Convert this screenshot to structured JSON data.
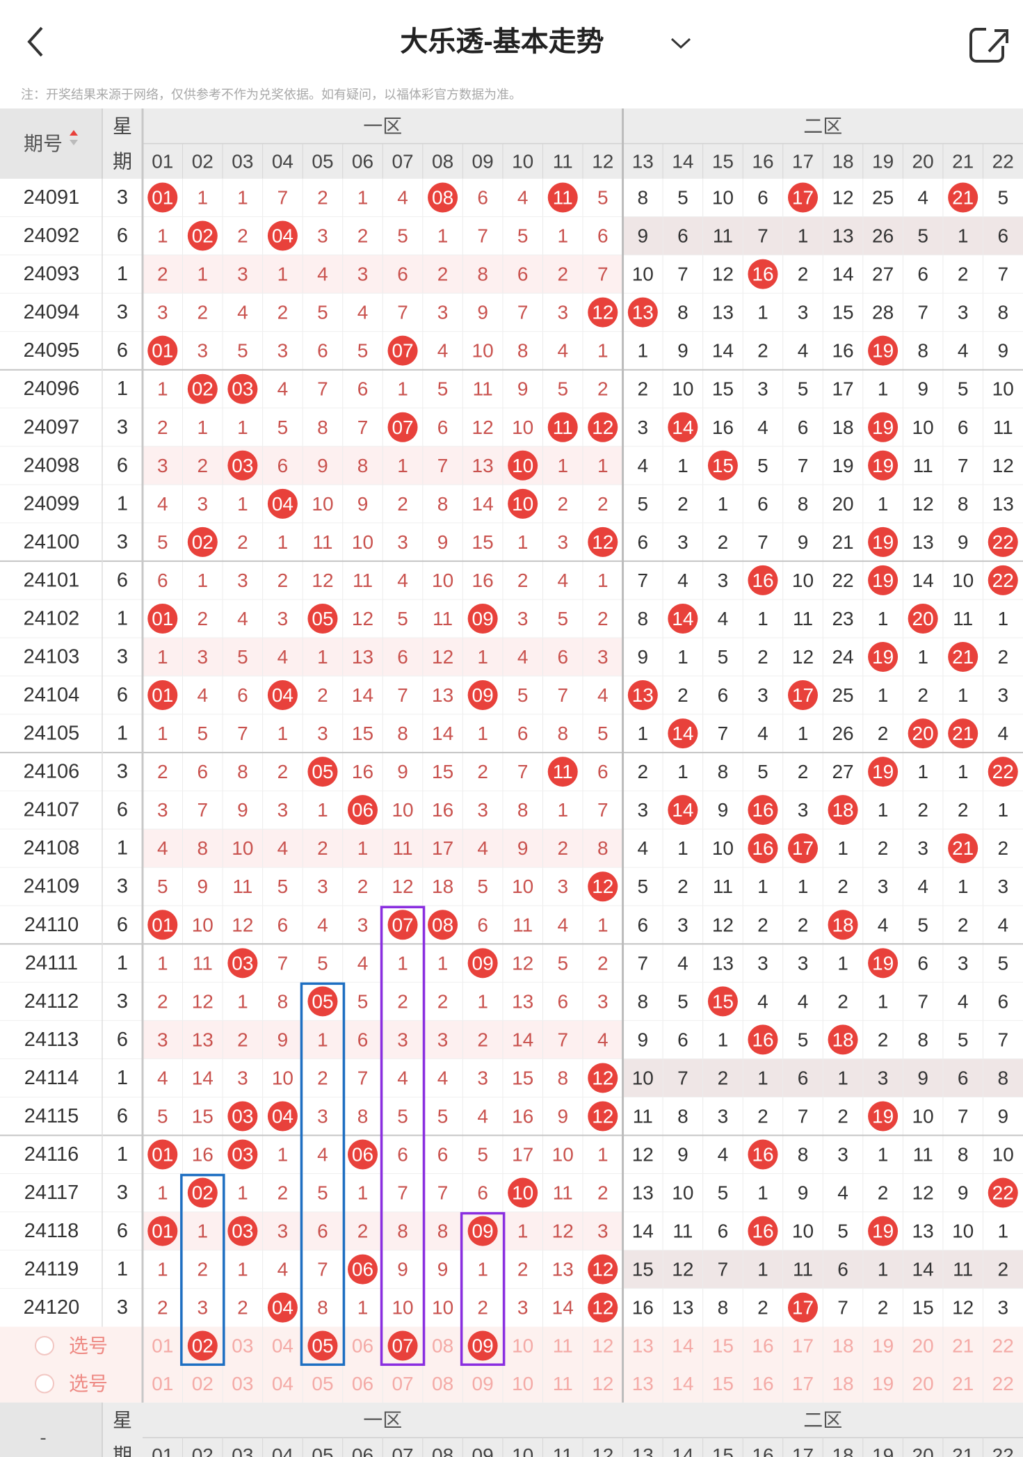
{
  "header": {
    "title": "大乐透-基本走势",
    "note": "注：开奖结果来源于网络，仅供参考不作为兑奖依据。如有疑问，以福体彩官方数据为准。"
  },
  "table": {
    "issue_header": "期号",
    "week_header": [
      "星",
      "期"
    ],
    "zone1": "一区",
    "zone2": "二区",
    "columns": [
      "01",
      "02",
      "03",
      "04",
      "05",
      "06",
      "07",
      "08",
      "09",
      "10",
      "11",
      "12",
      "13",
      "14",
      "15",
      "16",
      "17",
      "18",
      "19",
      "20",
      "21",
      "22"
    ],
    "rows": [
      {
        "issue": "24091",
        "week": "3",
        "cells": [
          "01",
          "1",
          "1",
          "7",
          "2",
          "1",
          "4",
          "08",
          "6",
          "4",
          "11",
          "5",
          "8",
          "5",
          "10",
          "6",
          "17",
          "12",
          "25",
          "4",
          "21",
          "5"
        ],
        "hits": [
          0,
          7,
          10,
          16,
          20
        ]
      },
      {
        "issue": "24092",
        "week": "6",
        "cells": [
          "1",
          "02",
          "2",
          "04",
          "3",
          "2",
          "5",
          "1",
          "7",
          "5",
          "1",
          "6",
          "9",
          "6",
          "11",
          "7",
          "1",
          "13",
          "26",
          "5",
          "1",
          "6"
        ],
        "hits": [
          1,
          3
        ]
      },
      {
        "issue": "24093",
        "week": "1",
        "cells": [
          "2",
          "1",
          "3",
          "1",
          "4",
          "3",
          "6",
          "2",
          "8",
          "6",
          "2",
          "7",
          "10",
          "7",
          "12",
          "16",
          "2",
          "14",
          "27",
          "6",
          "2",
          "7"
        ],
        "hits": [
          15
        ]
      },
      {
        "issue": "24094",
        "week": "3",
        "cells": [
          "3",
          "2",
          "4",
          "2",
          "5",
          "4",
          "7",
          "3",
          "9",
          "7",
          "3",
          "12",
          "13",
          "8",
          "13",
          "1",
          "3",
          "15",
          "28",
          "7",
          "3",
          "8"
        ],
        "hits": [
          11,
          12
        ]
      },
      {
        "issue": "24095",
        "week": "6",
        "cells": [
          "01",
          "3",
          "5",
          "3",
          "6",
          "5",
          "07",
          "4",
          "10",
          "8",
          "4",
          "1",
          "1",
          "9",
          "14",
          "2",
          "4",
          "16",
          "19",
          "8",
          "4",
          "9"
        ],
        "hits": [
          0,
          6,
          18
        ]
      },
      {
        "issue": "24096",
        "week": "1",
        "cells": [
          "1",
          "02",
          "03",
          "4",
          "7",
          "6",
          "1",
          "5",
          "11",
          "9",
          "5",
          "2",
          "2",
          "10",
          "15",
          "3",
          "5",
          "17",
          "1",
          "9",
          "5",
          "10"
        ],
        "hits": [
          1,
          2
        ]
      },
      {
        "issue": "24097",
        "week": "3",
        "cells": [
          "2",
          "1",
          "1",
          "5",
          "8",
          "7",
          "07",
          "6",
          "12",
          "10",
          "11",
          "12",
          "3",
          "14",
          "16",
          "4",
          "6",
          "18",
          "19",
          "10",
          "6",
          "11"
        ],
        "hits": [
          6,
          10,
          11,
          13,
          18
        ]
      },
      {
        "issue": "24098",
        "week": "6",
        "cells": [
          "3",
          "2",
          "03",
          "6",
          "9",
          "8",
          "1",
          "7",
          "13",
          "10",
          "1",
          "1",
          "4",
          "1",
          "15",
          "5",
          "7",
          "19",
          "19",
          "11",
          "7",
          "12"
        ],
        "hits": [
          2,
          9,
          14,
          18
        ]
      },
      {
        "issue": "24099",
        "week": "1",
        "cells": [
          "4",
          "3",
          "1",
          "04",
          "10",
          "9",
          "2",
          "8",
          "14",
          "10",
          "2",
          "2",
          "5",
          "2",
          "1",
          "6",
          "8",
          "20",
          "1",
          "12",
          "8",
          "13"
        ],
        "hits": [
          3,
          9
        ]
      },
      {
        "issue": "24100",
        "week": "3",
        "cells": [
          "5",
          "02",
          "2",
          "1",
          "11",
          "10",
          "3",
          "9",
          "15",
          "1",
          "3",
          "12",
          "6",
          "3",
          "2",
          "7",
          "9",
          "21",
          "19",
          "13",
          "9",
          "22"
        ],
        "hits": [
          1,
          11,
          18,
          21
        ]
      },
      {
        "issue": "24101",
        "week": "6",
        "cells": [
          "6",
          "1",
          "3",
          "2",
          "12",
          "11",
          "4",
          "10",
          "16",
          "2",
          "4",
          "1",
          "7",
          "4",
          "3",
          "16",
          "10",
          "22",
          "19",
          "14",
          "10",
          "22"
        ],
        "hits": [
          15,
          18,
          21
        ]
      },
      {
        "issue": "24102",
        "week": "1",
        "cells": [
          "01",
          "2",
          "4",
          "3",
          "05",
          "12",
          "5",
          "11",
          "09",
          "3",
          "5",
          "2",
          "8",
          "14",
          "4",
          "1",
          "11",
          "23",
          "1",
          "20",
          "11",
          "1"
        ],
        "hits": [
          0,
          4,
          8,
          13,
          19
        ]
      },
      {
        "issue": "24103",
        "week": "3",
        "cells": [
          "1",
          "3",
          "5",
          "4",
          "1",
          "13",
          "6",
          "12",
          "1",
          "4",
          "6",
          "3",
          "9",
          "1",
          "5",
          "2",
          "12",
          "24",
          "19",
          "1",
          "21",
          "2"
        ],
        "hits": [
          18,
          20
        ]
      },
      {
        "issue": "24104",
        "week": "6",
        "cells": [
          "01",
          "4",
          "6",
          "04",
          "2",
          "14",
          "7",
          "13",
          "09",
          "5",
          "7",
          "4",
          "13",
          "2",
          "6",
          "3",
          "17",
          "25",
          "1",
          "2",
          "1",
          "3"
        ],
        "hits": [
          0,
          3,
          8,
          12,
          16
        ]
      },
      {
        "issue": "24105",
        "week": "1",
        "cells": [
          "1",
          "5",
          "7",
          "1",
          "3",
          "15",
          "8",
          "14",
          "1",
          "6",
          "8",
          "5",
          "1",
          "14",
          "7",
          "4",
          "1",
          "26",
          "2",
          "20",
          "21",
          "4"
        ],
        "hits": [
          13,
          19,
          20
        ]
      },
      {
        "issue": "24106",
        "week": "3",
        "cells": [
          "2",
          "6",
          "8",
          "2",
          "05",
          "16",
          "9",
          "15",
          "2",
          "7",
          "11",
          "6",
          "2",
          "1",
          "8",
          "5",
          "2",
          "27",
          "19",
          "1",
          "1",
          "22"
        ],
        "hits": [
          4,
          10,
          18,
          21
        ]
      },
      {
        "issue": "24107",
        "week": "6",
        "cells": [
          "3",
          "7",
          "9",
          "3",
          "1",
          "06",
          "10",
          "16",
          "3",
          "8",
          "1",
          "7",
          "3",
          "14",
          "9",
          "16",
          "3",
          "18",
          "1",
          "2",
          "2",
          "1"
        ],
        "hits": [
          5,
          13,
          15,
          17
        ]
      },
      {
        "issue": "24108",
        "week": "1",
        "cells": [
          "4",
          "8",
          "10",
          "4",
          "2",
          "1",
          "11",
          "17",
          "4",
          "9",
          "2",
          "8",
          "4",
          "1",
          "10",
          "16",
          "17",
          "1",
          "2",
          "3",
          "21",
          "2"
        ],
        "hits": [
          15,
          16,
          20
        ]
      },
      {
        "issue": "24109",
        "week": "3",
        "cells": [
          "5",
          "9",
          "11",
          "5",
          "3",
          "2",
          "12",
          "18",
          "5",
          "10",
          "3",
          "12",
          "5",
          "2",
          "11",
          "1",
          "1",
          "2",
          "3",
          "4",
          "1",
          "3"
        ],
        "hits": [
          11
        ]
      },
      {
        "issue": "24110",
        "week": "6",
        "cells": [
          "01",
          "10",
          "12",
          "6",
          "4",
          "3",
          "07",
          "08",
          "6",
          "11",
          "4",
          "1",
          "6",
          "3",
          "12",
          "2",
          "2",
          "18",
          "4",
          "5",
          "2",
          "4"
        ],
        "hits": [
          0,
          6,
          7,
          17
        ]
      },
      {
        "issue": "24111",
        "week": "1",
        "cells": [
          "1",
          "11",
          "03",
          "7",
          "5",
          "4",
          "1",
          "1",
          "09",
          "12",
          "5",
          "2",
          "7",
          "4",
          "13",
          "3",
          "3",
          "1",
          "19",
          "6",
          "3",
          "5"
        ],
        "hits": [
          2,
          8,
          18
        ]
      },
      {
        "issue": "24112",
        "week": "3",
        "cells": [
          "2",
          "12",
          "1",
          "8",
          "05",
          "5",
          "2",
          "2",
          "1",
          "13",
          "6",
          "3",
          "8",
          "5",
          "15",
          "4",
          "4",
          "2",
          "1",
          "7",
          "4",
          "6"
        ],
        "hits": [
          4,
          14
        ]
      },
      {
        "issue": "24113",
        "week": "6",
        "cells": [
          "3",
          "13",
          "2",
          "9",
          "1",
          "6",
          "3",
          "3",
          "2",
          "14",
          "7",
          "4",
          "9",
          "6",
          "1",
          "16",
          "5",
          "18",
          "2",
          "8",
          "5",
          "7"
        ],
        "hits": [
          15,
          17
        ]
      },
      {
        "issue": "24114",
        "week": "1",
        "cells": [
          "4",
          "14",
          "3",
          "10",
          "2",
          "7",
          "4",
          "4",
          "3",
          "15",
          "8",
          "12",
          "10",
          "7",
          "2",
          "1",
          "6",
          "1",
          "3",
          "9",
          "6",
          "8"
        ],
        "hits": [
          11
        ]
      },
      {
        "issue": "24115",
        "week": "6",
        "cells": [
          "5",
          "15",
          "03",
          "04",
          "3",
          "8",
          "5",
          "5",
          "4",
          "16",
          "9",
          "12",
          "11",
          "8",
          "3",
          "2",
          "7",
          "2",
          "19",
          "10",
          "7",
          "9"
        ],
        "hits": [
          2,
          3,
          11,
          18
        ]
      },
      {
        "issue": "24116",
        "week": "1",
        "cells": [
          "01",
          "16",
          "03",
          "1",
          "4",
          "06",
          "6",
          "6",
          "5",
          "17",
          "10",
          "1",
          "12",
          "9",
          "4",
          "16",
          "8",
          "3",
          "1",
          "11",
          "8",
          "10"
        ],
        "hits": [
          0,
          2,
          5,
          15
        ]
      },
      {
        "issue": "24117",
        "week": "3",
        "cells": [
          "1",
          "02",
          "1",
          "2",
          "5",
          "1",
          "7",
          "7",
          "6",
          "10",
          "11",
          "2",
          "13",
          "10",
          "5",
          "1",
          "9",
          "4",
          "2",
          "12",
          "9",
          "22"
        ],
        "hits": [
          1,
          9,
          21
        ]
      },
      {
        "issue": "24118",
        "week": "6",
        "cells": [
          "01",
          "1",
          "03",
          "3",
          "6",
          "2",
          "8",
          "8",
          "09",
          "1",
          "12",
          "3",
          "14",
          "11",
          "6",
          "16",
          "10",
          "5",
          "19",
          "13",
          "10",
          "1"
        ],
        "hits": [
          0,
          2,
          8,
          15,
          18
        ]
      },
      {
        "issue": "24119",
        "week": "1",
        "cells": [
          "1",
          "2",
          "1",
          "4",
          "7",
          "06",
          "9",
          "9",
          "1",
          "2",
          "13",
          "12",
          "15",
          "12",
          "7",
          "1",
          "11",
          "6",
          "1",
          "14",
          "11",
          "2"
        ],
        "hits": [
          5,
          11
        ]
      },
      {
        "issue": "24120",
        "week": "3",
        "cells": [
          "2",
          "3",
          "2",
          "04",
          "8",
          "1",
          "10",
          "10",
          "2",
          "3",
          "14",
          "12",
          "16",
          "13",
          "8",
          "2",
          "17",
          "7",
          "2",
          "15",
          "12",
          "3"
        ],
        "hits": [
          3,
          11,
          16
        ]
      }
    ],
    "select_label": "选号",
    "select_rows": [
      {
        "hits": [
          1,
          4,
          6,
          8
        ]
      },
      {
        "hits": []
      }
    ],
    "footer_issue": "-"
  }
}
